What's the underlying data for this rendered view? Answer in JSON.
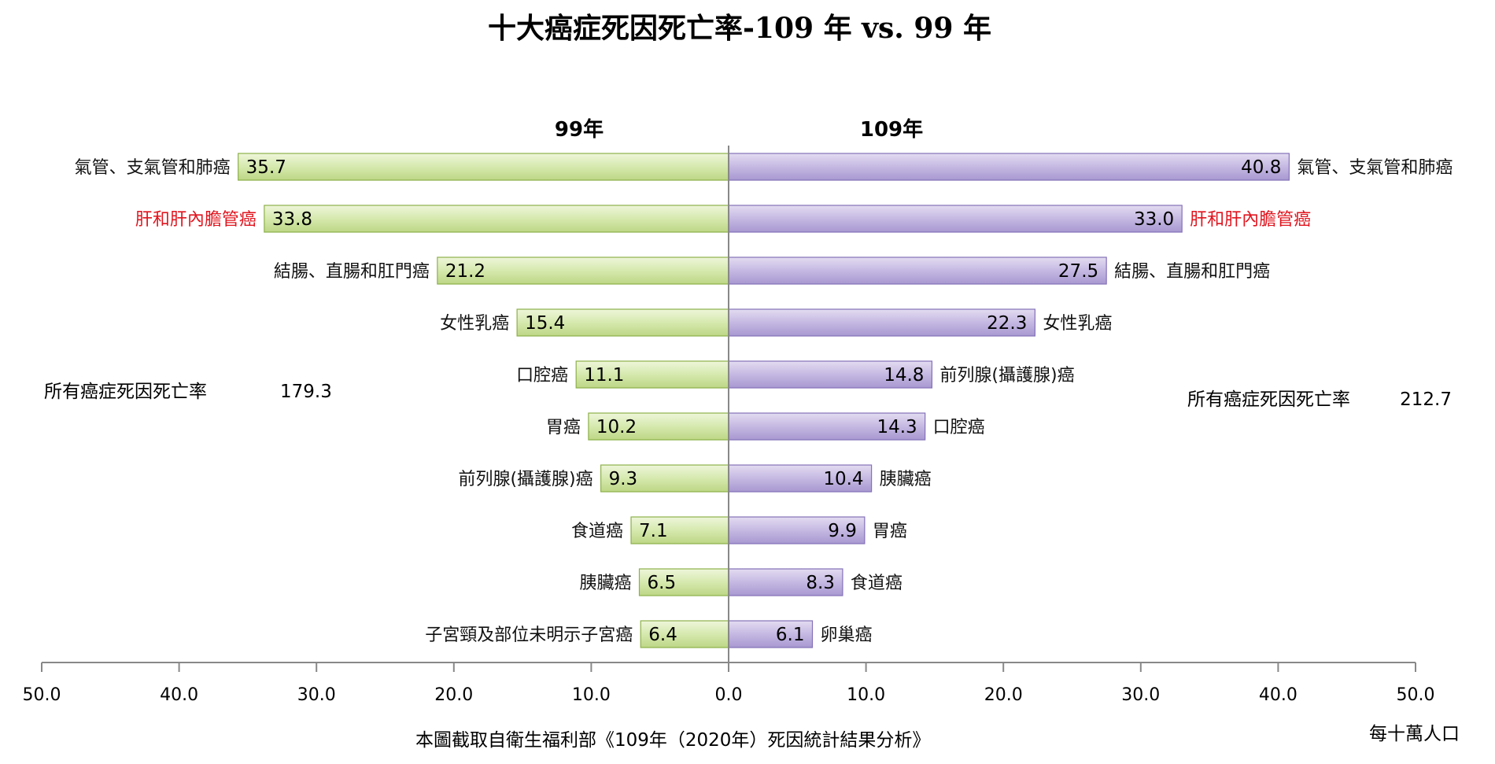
{
  "chart_data": {
    "type": "bar",
    "title": "十大癌症死因死亡率-109 年 vs. 99 年",
    "left_header": "99年",
    "right_header": "109年",
    "unit": "每十萬人口",
    "source": "本圖截取自衛生福利部《109年（2020年）死因統計結果分析》",
    "xlim": [
      0,
      50
    ],
    "ticks": [
      "50.0",
      "40.0",
      "30.0",
      "20.0",
      "10.0",
      "0.0",
      "10.0",
      "20.0",
      "30.0",
      "40.0",
      "50.0"
    ],
    "totals": {
      "left_label": "所有癌症死因死亡率",
      "left_value": "179.3",
      "right_label": "所有癌症死因死亡率",
      "right_value": "212.7"
    },
    "left": {
      "name": "99年",
      "categories": [
        "氣管、支氣管和肺癌",
        "肝和肝內膽管癌",
        "結腸、直腸和肛門癌",
        "女性乳癌",
        "口腔癌",
        "胃癌",
        "前列腺(攝護腺)癌",
        "食道癌",
        "胰臟癌",
        "子宮頸及部位未明示子宮癌"
      ],
      "values": [
        35.7,
        33.8,
        21.2,
        15.4,
        11.1,
        10.2,
        9.3,
        7.1,
        6.5,
        6.4
      ]
    },
    "right": {
      "name": "109年",
      "categories": [
        "氣管、支氣管和肺癌",
        "肝和肝內膽管癌",
        "結腸、直腸和肛門癌",
        "女性乳癌",
        "前列腺(攝護腺)癌",
        "口腔癌",
        "胰臟癌",
        "胃癌",
        "食道癌",
        "卵巢癌"
      ],
      "values": [
        40.8,
        33.0,
        27.5,
        22.3,
        14.8,
        14.3,
        10.4,
        9.9,
        8.3,
        6.1
      ]
    },
    "highlight_category": "肝和肝內膽管癌",
    "colors": {
      "left_bar": "#d3e6a8",
      "left_bar_edge": "#8db04a",
      "right_bar": "#bfb1dd",
      "right_bar_edge": "#8471b8",
      "highlight_text": "#e0141e",
      "axis": "#888888"
    }
  }
}
